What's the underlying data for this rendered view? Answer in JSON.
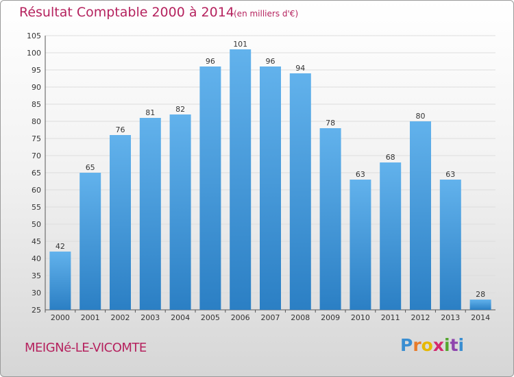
{
  "header": {
    "title": "Résultat Comptable 2000 à 2014",
    "subtitle": "(en milliers d'€)"
  },
  "footer": {
    "commune": "MEIGNé-LE-VICOMTE",
    "logo_letters": [
      "P",
      "r",
      "o",
      "x",
      "i",
      "t",
      "i"
    ],
    "logo_colors": [
      "#3a8ed1",
      "#e87b2a",
      "#e6b800",
      "#d4286e",
      "#55a630",
      "#8e44ad",
      "#3a8ed1"
    ]
  },
  "colors": {
    "bar_light": "#62b2ec",
    "bar_dark": "#2b7fc4",
    "grid": "#dddddd",
    "text_accent": "#b5225e"
  },
  "chart_data": {
    "type": "bar",
    "title": "Résultat Comptable 2000 à 2014",
    "subtitle": "(en milliers d'€)",
    "xlabel": "",
    "ylabel": "",
    "categories": [
      "2000",
      "2001",
      "2002",
      "2003",
      "2004",
      "2005",
      "2006",
      "2007",
      "2008",
      "2009",
      "2010",
      "2011",
      "2012",
      "2013",
      "2014"
    ],
    "values": [
      42,
      65,
      76,
      81,
      82,
      96,
      101,
      96,
      94,
      78,
      63,
      68,
      80,
      63,
      28
    ],
    "ylim": [
      25,
      105
    ],
    "yticks": [
      25,
      30,
      35,
      40,
      45,
      50,
      55,
      60,
      65,
      70,
      75,
      80,
      85,
      90,
      95,
      100,
      105
    ],
    "grid": true,
    "legend": "none"
  }
}
